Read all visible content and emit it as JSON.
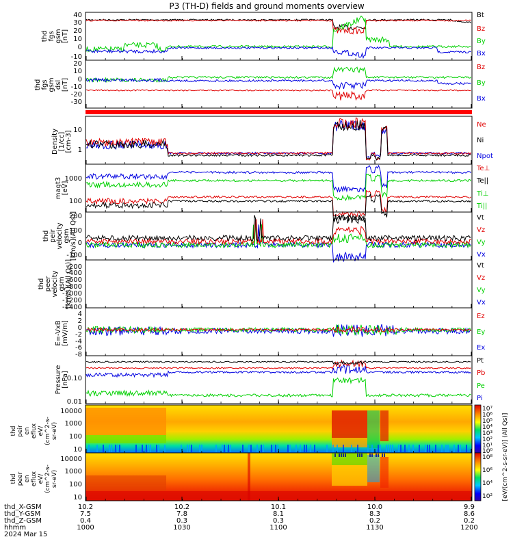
{
  "title": "P3 (TH-D) fields and ground moments overview",
  "colors": {
    "black": "#000000",
    "red": "#e00000",
    "green": "#00d000",
    "blue": "#0000e0"
  },
  "panels": [
    {
      "id": "fgs-gsm",
      "ylabel": [
        "thd",
        "fgs",
        "gsm",
        "[nT]"
      ],
      "ticks": [
        "40",
        "30",
        "20",
        "10",
        "0",
        "-10"
      ],
      "legend": [
        "Bt",
        "Bz",
        "By",
        "Bx"
      ],
      "legend_colors": [
        "black",
        "red",
        "green",
        "blue"
      ]
    },
    {
      "id": "fgs-gsm-dsl",
      "ylabel": [
        "thd",
        "fgs",
        "gsm",
        "dsl",
        "[nT]"
      ],
      "ticks": [
        "20",
        "10",
        "0",
        "-10",
        "-20",
        "-30"
      ],
      "legend": [
        "Bz",
        "By",
        "Bx"
      ],
      "legend_colors": [
        "red",
        "green",
        "blue"
      ]
    },
    {
      "id": "density",
      "ylabel": [
        "Density",
        "[1/cc]",
        "[cm-3]"
      ],
      "ticks": [
        "10",
        "1"
      ],
      "legend": [
        "Ne",
        "Ni",
        "Npot"
      ],
      "legend_colors": [
        "red",
        "black",
        "blue"
      ]
    },
    {
      "id": "temperature",
      "ylabel": [
        "magt3",
        "[eV]"
      ],
      "ticks": [
        "1000",
        "100"
      ],
      "legend": [
        "Te⊥",
        "Te||",
        "Ti⊥",
        "Ti||"
      ],
      "legend_colors": [
        "red",
        "black",
        "green",
        "green"
      ]
    },
    {
      "id": "peir-velocity",
      "ylabel": [
        "thd",
        "peir",
        "velocity",
        "gsm",
        "[km/s](All Qs)]"
      ],
      "ticks": [
        "200",
        "100",
        "0",
        "-100"
      ],
      "legend": [
        "Vt",
        "Vz",
        "Vy",
        "Vx"
      ],
      "legend_colors": [
        "black",
        "red",
        "green",
        "blue"
      ]
    },
    {
      "id": "peer-velocity",
      "ylabel": [
        "thd",
        "peer",
        "velocity",
        "gsm",
        "[km/s](All Qs)]"
      ],
      "ticks": [
        "-200",
        "-400",
        "-600",
        "-800",
        "-1000",
        "-1200",
        "-1400"
      ],
      "legend": [
        "Vt",
        "Vz",
        "Vy",
        "Vx"
      ],
      "legend_colors": [
        "black",
        "red",
        "green",
        "blue"
      ]
    },
    {
      "id": "efield",
      "ylabel": [
        "E=-VxB",
        "[mV/m]"
      ],
      "ticks": [
        "4",
        "2",
        "0",
        "-2",
        "-4",
        "-6",
        "-8"
      ],
      "legend": [
        "Ez",
        "Ey",
        "Ex"
      ],
      "legend_colors": [
        "red",
        "green",
        "blue"
      ]
    },
    {
      "id": "pressure",
      "ylabel": [
        "Pressure",
        "[nPa]"
      ],
      "ticks": [
        "0.10",
        "0.01"
      ],
      "legend": [
        "Pt",
        "Pb",
        "Pe",
        "Pi"
      ],
      "legend_colors": [
        "black",
        "red",
        "green",
        "blue"
      ]
    },
    {
      "id": "peir-eflux",
      "ylabel": [
        "thd",
        "peir",
        "en",
        "eflux",
        "eV/",
        "(cm^2-s-",
        "sr-eV)"
      ],
      "ticks": [
        "10000",
        "1000",
        "100",
        "10"
      ]
    },
    {
      "id": "peer-eflux",
      "ylabel": [
        "thd",
        "peer",
        "en",
        "eflux",
        "eV/",
        "(cm^2-s-",
        "sr-eV)"
      ],
      "ticks": [
        "10000",
        "1000",
        "100",
        "10"
      ]
    }
  ],
  "colorbar": {
    "top_ticks": [
      "10⁷",
      "10⁶",
      "10⁵",
      "10⁴",
      "10³",
      "10²",
      "10¹",
      "10⁰"
    ],
    "bottom_ticks": [
      "10⁸",
      "10⁶",
      "10⁴",
      "10²"
    ],
    "label": "[eV/(cm^2-s-sr-eV)] (All Qs)]"
  },
  "xaxis": {
    "row_labels": [
      "thd_X-GSM",
      "thd_Y-GSM",
      "thd_Z-GSM",
      "hhmm",
      "2024 Mar 15"
    ],
    "columns": [
      [
        "10.2",
        "7.5",
        "0.4",
        "1000"
      ],
      [
        "10.2",
        "7.8",
        "0.3",
        "1030"
      ],
      [
        "10.1",
        "8.1",
        "0.3",
        "1100"
      ],
      [
        "10.0",
        "8.3",
        "0.2",
        "1130"
      ],
      [
        "9.9",
        "8.6",
        "0.2",
        "1200"
      ]
    ]
  },
  "chart_data": {
    "type": "line",
    "x_unit": "hhmm",
    "x_range": [
      "1000",
      "1200"
    ],
    "major_ticks": [
      "1000",
      "1030",
      "1100",
      "1130",
      "1200"
    ],
    "series": [
      {
        "panel": "fgs-gsm",
        "name": "Bt",
        "level": 34,
        "ylim": [
          -10,
          40
        ]
      },
      {
        "panel": "fgs-gsm",
        "name": "Bz",
        "level": 33,
        "ylim": [
          -10,
          40
        ]
      },
      {
        "panel": "fgs-gsm",
        "name": "By",
        "level": 5,
        "ylim": [
          -10,
          40
        ]
      },
      {
        "panel": "fgs-gsm",
        "name": "Bx",
        "level": 0,
        "ylim": [
          -10,
          40
        ]
      },
      {
        "panel": "fgs-gsm-dsl",
        "name": "Bz",
        "level": -20,
        "ylim": [
          -38,
          22
        ]
      },
      {
        "panel": "fgs-gsm-dsl",
        "name": "By",
        "level": 0,
        "ylim": [
          -38,
          22
        ]
      },
      {
        "panel": "fgs-gsm-dsl",
        "name": "Bx",
        "level": 0,
        "ylim": [
          -38,
          22
        ]
      },
      {
        "panel": "density",
        "name": "Ne",
        "level": 0.5,
        "ylim": [
          0.2,
          40
        ],
        "log": true
      },
      {
        "panel": "density",
        "name": "Ni",
        "level": 0.4,
        "ylim": [
          0.2,
          40
        ],
        "log": true
      },
      {
        "panel": "density",
        "name": "Npot",
        "level": 0.3,
        "ylim": [
          0.2,
          40
        ],
        "log": true
      },
      {
        "panel": "pressure",
        "name": "Pt",
        "level": 0.25,
        "ylim": [
          0.007,
          0.5
        ],
        "log": true
      },
      {
        "panel": "pressure",
        "name": "Pb",
        "level": 0.2,
        "ylim": [
          0.007,
          0.5
        ],
        "log": true
      },
      {
        "panel": "pressure",
        "name": "Pi",
        "level": 0.07,
        "ylim": [
          0.007,
          0.5
        ],
        "log": true
      },
      {
        "panel": "pressure",
        "name": "Pe",
        "level": 0.015,
        "ylim": [
          0.007,
          0.5
        ],
        "log": true
      }
    ]
  }
}
